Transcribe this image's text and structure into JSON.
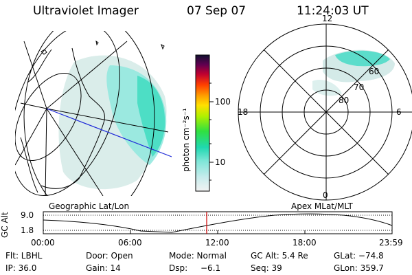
{
  "header": {
    "title": "Ultraviolet Imager",
    "date": "07 Sep 07",
    "time": "11:24:03 UT"
  },
  "colorbar": {
    "unit_label": "photon cm⁻²s⁻¹",
    "ticks": [
      "100",
      "10"
    ]
  },
  "polar": {
    "labels": {
      "top": "12",
      "left": "18",
      "right": "6",
      "bottom": "0"
    },
    "ring_labels": [
      "80",
      "70",
      "60"
    ]
  },
  "panel_captions": {
    "left": "Geographic Lat/Lon",
    "right": "Apex MLat/MLT"
  },
  "altitude_plot": {
    "ylabel": "GC Alt",
    "ymax_label": "9.0",
    "ymin_label": "1.8",
    "x_ticks": [
      "00:00",
      "06:00",
      "12:00",
      "18:00",
      "23:59"
    ]
  },
  "info": {
    "filter": "Flt: LBHL",
    "door": "Door: Open",
    "mode": "Mode: Normal",
    "gc_alt": "GC Alt: 5.4 Re",
    "glat": "GLat: −74.8",
    "ip": "IP: 36.0",
    "gain": "Gain: 14",
    "dsp_label": "Dsp:",
    "dsp_value": "−6.1",
    "seq": "Seq: 39",
    "glon": "GLon: 359.7"
  }
}
